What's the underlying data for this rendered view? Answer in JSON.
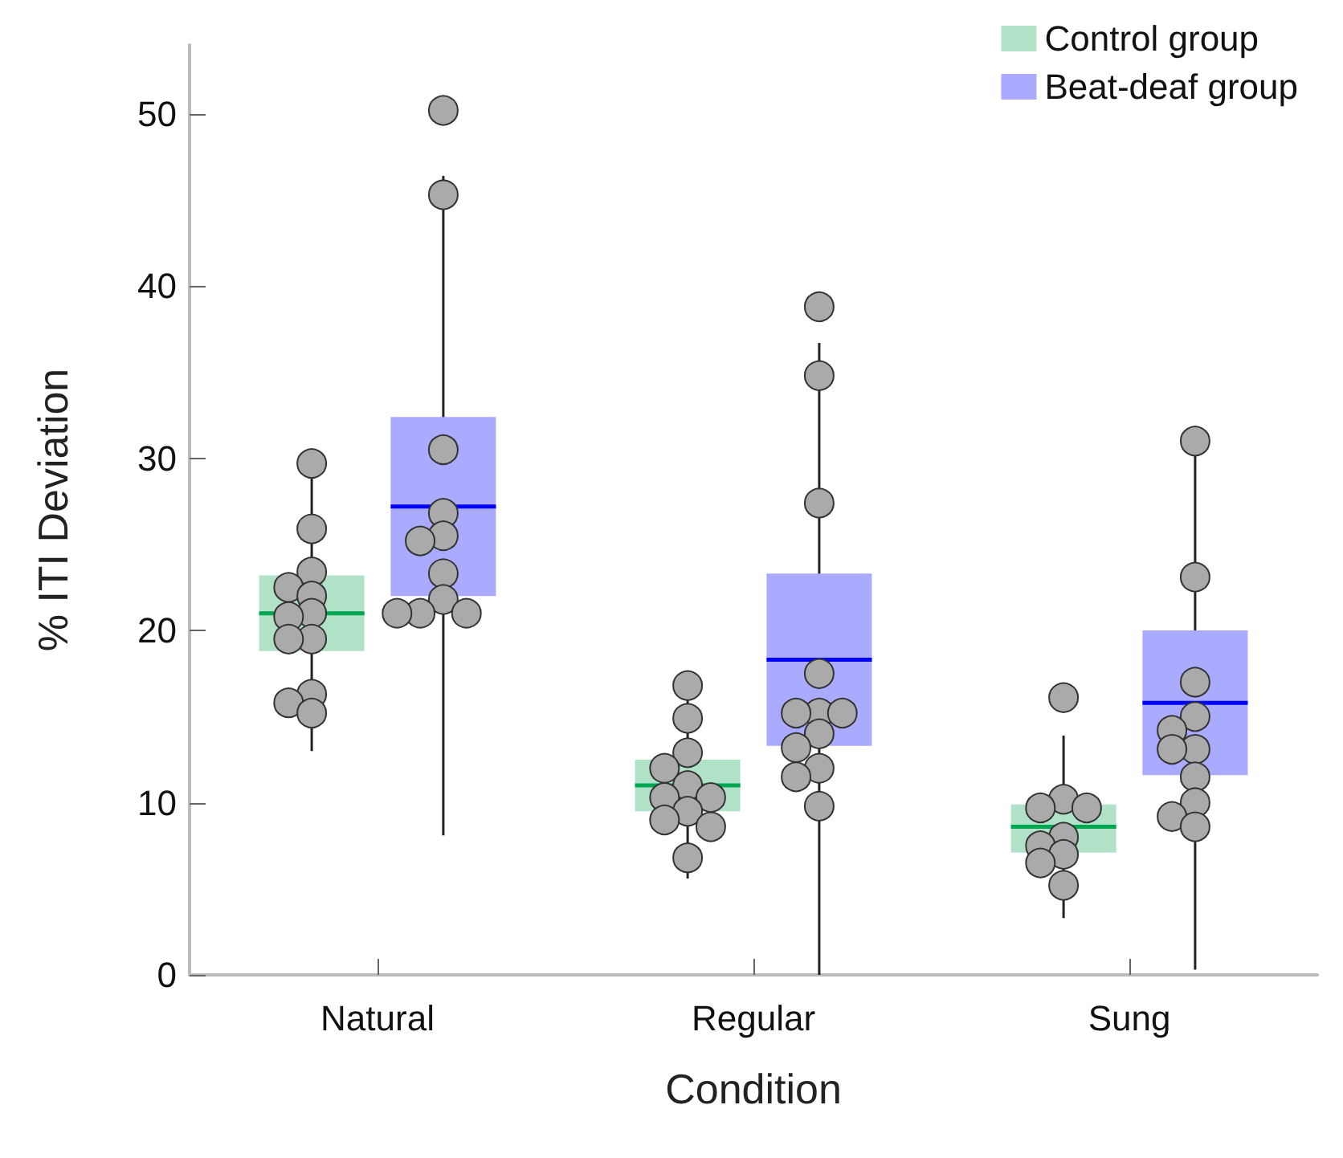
{
  "chart_data": {
    "type": "box",
    "xlabel": "Condition",
    "ylabel": "% ITI Deviation",
    "categories": [
      "Natural",
      "Regular",
      "Sung"
    ],
    "ylim": [
      0,
      54
    ],
    "yticks": [
      0,
      10,
      20,
      30,
      40,
      50
    ],
    "legend": "top right",
    "series": [
      {
        "name": "Control group",
        "color": "#b0e2c8",
        "boxes": [
          {
            "low": 13,
            "q1": 18.8,
            "median": 21,
            "q3": 23.2,
            "high": 29.7
          },
          {
            "low": 5.6,
            "q1": 9.5,
            "median": 11,
            "q3": 12.5,
            "high": 16.8
          },
          {
            "low": 3.3,
            "q1": 7.1,
            "median": 8.6,
            "q3": 9.9,
            "high": 13.9
          }
        ]
      },
      {
        "name": "Beat-deaf group",
        "color": "#aaaaff",
        "boxes": [
          {
            "low": 8.1,
            "q1": 22,
            "median": 27.2,
            "q3": 32.4,
            "high": 46.4
          },
          {
            "low": 0,
            "q1": 13.3,
            "median": 18.3,
            "q3": 23.3,
            "high": 36.7
          },
          {
            "low": 0.3,
            "q1": 11.6,
            "median": 15.8,
            "q3": 20,
            "high": 30.5
          }
        ]
      },
      {
        "type": "scatter",
        "color": "#aaaaaa",
        "x": [
          "Natural",
          "Natural",
          "Natural",
          "Natural",
          "Natural",
          "Natural",
          "Natural",
          "Natural",
          "Natural",
          "Natural",
          "Natural",
          "Natural",
          "Regular",
          "Regular",
          "Regular",
          "Regular",
          "Regular",
          "Regular",
          "Regular",
          "Regular",
          "Regular",
          "Regular",
          "Regular",
          "Sung",
          "Sung",
          "Sung",
          "Sung",
          "Sung",
          "Sung",
          "Sung",
          "Sung",
          "Sung"
        ],
        "values": [
          29.7,
          25.9,
          23.4,
          22.5,
          22,
          21,
          20.8,
          19.5,
          19.5,
          16.3,
          15.8,
          15.2,
          16.8,
          14.9,
          12.9,
          12,
          11,
          10.3,
          10.3,
          9.5,
          9,
          8.6,
          6.8,
          16.1,
          10.2,
          9.7,
          9.7,
          8,
          7.5,
          7,
          6.5,
          5.2
        ]
      },
      {
        "type": "scatter",
        "color": "#aaaaaa",
        "x": [
          "Natural",
          "Natural",
          "Natural",
          "Natural",
          "Natural",
          "Natural",
          "Natural",
          "Natural",
          "Natural",
          "Natural",
          "Natural",
          "Regular",
          "Regular",
          "Regular",
          "Regular",
          "Regular",
          "Regular",
          "Regular",
          "Regular",
          "Regular",
          "Regular",
          "Regular",
          "Regular",
          "Sung",
          "Sung",
          "Sung",
          "Sung",
          "Sung",
          "Sung",
          "Sung",
          "Sung",
          "Sung",
          "Sung",
          "Sung"
        ],
        "values": [
          50.2,
          45.3,
          30.5,
          26.8,
          25.5,
          25.2,
          23.3,
          21.8,
          21,
          21,
          21,
          38.8,
          34.8,
          27.4,
          17.5,
          15.2,
          15.2,
          15.2,
          14,
          13.2,
          12,
          11.5,
          9.8,
          31,
          23.1,
          17,
          15,
          14.2,
          13.1,
          13.1,
          11.5,
          10,
          9.2,
          8.6
        ]
      }
    ]
  }
}
